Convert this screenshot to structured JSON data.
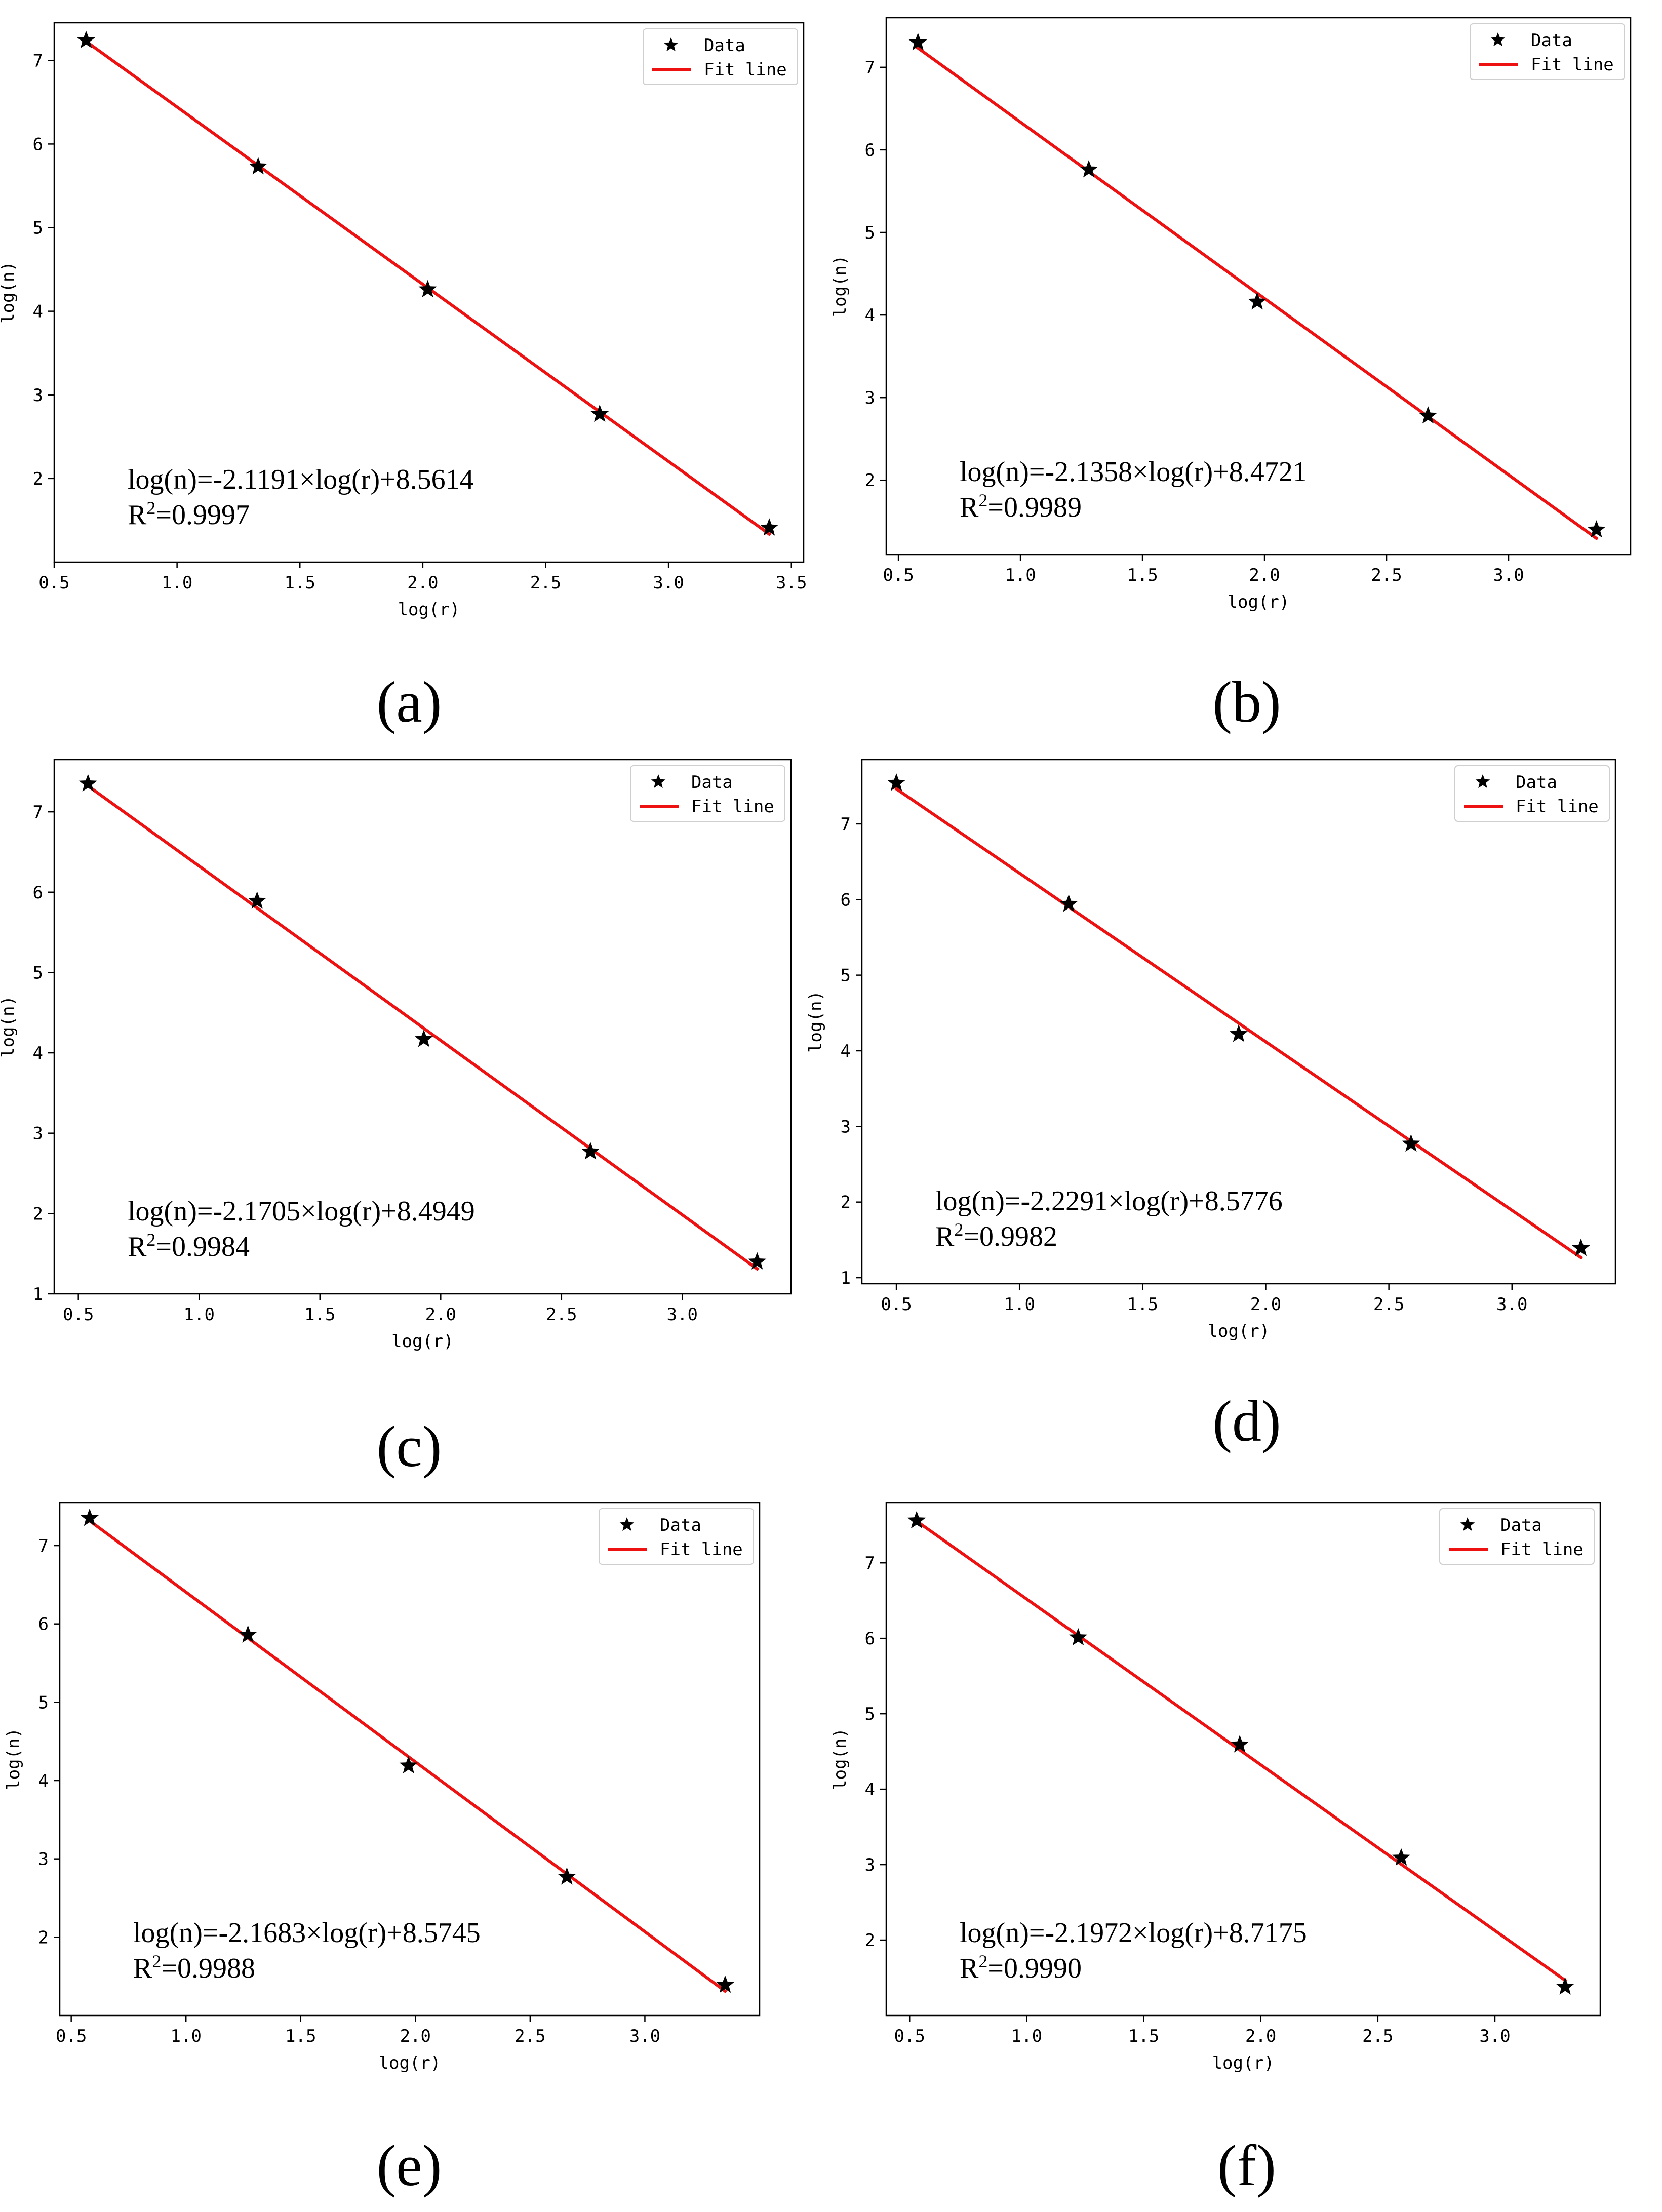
{
  "chart_data": [
    {
      "type": "scatter",
      "panel_label": "(a)",
      "xlabel": "log(r)",
      "ylabel": "log(n)",
      "xlim": [
        0.5,
        3.55
      ],
      "ylim": [
        1.0,
        7.45
      ],
      "xticks": [
        "0.5",
        "1.0",
        "1.5",
        "2.0",
        "2.5",
        "3.0",
        "3.5"
      ],
      "yticks": [
        "2",
        "3",
        "4",
        "5",
        "6",
        "7"
      ],
      "points": {
        "x": [
          0.63,
          1.33,
          2.02,
          2.72,
          3.41
        ],
        "y": [
          7.24,
          5.73,
          4.26,
          2.77,
          1.41
        ]
      },
      "fit": {
        "slope": -2.1191,
        "intercept": 8.5614,
        "x_range": [
          0.63,
          3.41
        ]
      },
      "equation": "log(n)=-2.1191×log(r)+8.5614",
      "r2_label": "R",
      "r2_sup": "2",
      "r2_value": "=0.9997",
      "legend": {
        "data_label": "Data",
        "fit_label": "Fit line",
        "location": "top-right"
      },
      "colors": {
        "line": "#ee1111",
        "marker": "#000000"
      }
    },
    {
      "type": "scatter",
      "panel_label": "(b)",
      "xlabel": "log(r)",
      "ylabel": "log(n)",
      "xlim": [
        0.45,
        3.5
      ],
      "ylim": [
        1.1,
        7.6
      ],
      "xticks": [
        "0.5",
        "1.0",
        "1.5",
        "2.0",
        "2.5",
        "3.0"
      ],
      "yticks": [
        "2",
        "3",
        "4",
        "5",
        "6",
        "7"
      ],
      "points": {
        "x": [
          0.58,
          1.28,
          1.97,
          2.67,
          3.36
        ],
        "y": [
          7.3,
          5.76,
          4.16,
          2.78,
          1.4
        ]
      },
      "fit": {
        "slope": -2.1358,
        "intercept": 8.4721,
        "x_range": [
          0.58,
          3.36
        ]
      },
      "equation": "log(n)=-2.1358×log(r)+8.4721",
      "r2_label": "R",
      "r2_sup": "2",
      "r2_value": "=0.9989",
      "legend": {
        "data_label": "Data",
        "fit_label": "Fit line",
        "location": "top-right"
      },
      "colors": {
        "line": "#ee1111",
        "marker": "#000000"
      }
    },
    {
      "type": "scatter",
      "panel_label": "(c)",
      "xlabel": "log(r)",
      "ylabel": "log(n)",
      "xlim": [
        0.4,
        3.45
      ],
      "ylim": [
        1.0,
        7.65
      ],
      "xticks": [
        "0.5",
        "1.0",
        "1.5",
        "2.0",
        "2.5",
        "3.0"
      ],
      "yticks": [
        "1",
        "2",
        "3",
        "4",
        "5",
        "6",
        "7"
      ],
      "points": {
        "x": [
          0.54,
          1.24,
          1.93,
          2.62,
          3.31
        ],
        "y": [
          7.35,
          5.89,
          4.17,
          2.77,
          1.4
        ]
      },
      "fit": {
        "slope": -2.1705,
        "intercept": 8.4949,
        "x_range": [
          0.54,
          3.31
        ]
      },
      "equation": "log(n)=-2.1705×log(r)+8.4949",
      "r2_label": "R",
      "r2_sup": "2",
      "r2_value": "=0.9984",
      "legend": {
        "data_label": "Data",
        "fit_label": "Fit line",
        "location": "top-right"
      },
      "colors": {
        "line": "#ee1111",
        "marker": "#000000"
      }
    },
    {
      "type": "scatter",
      "panel_label": "(d)",
      "xlabel": "log(r)",
      "ylabel": "log(n)",
      "xlim": [
        0.36,
        3.42
      ],
      "ylim": [
        0.92,
        7.85
      ],
      "xticks": [
        "0.5",
        "1.0",
        "1.5",
        "2.0",
        "2.5",
        "3.0"
      ],
      "yticks": [
        "1",
        "2",
        "3",
        "4",
        "5",
        "6",
        "7"
      ],
      "points": {
        "x": [
          0.5,
          1.2,
          1.89,
          2.59,
          3.28
        ],
        "y": [
          7.54,
          5.94,
          4.22,
          2.77,
          1.39
        ]
      },
      "fit": {
        "slope": -2.2291,
        "intercept": 8.5776,
        "x_range": [
          0.5,
          3.28
        ]
      },
      "equation": "log(n)=-2.2291×log(r)+8.5776",
      "r2_label": "R",
      "r2_sup": "2",
      "r2_value": "=0.9982",
      "legend": {
        "data_label": "Data",
        "fit_label": "Fit line",
        "location": "top-right"
      },
      "colors": {
        "line": "#ee1111",
        "marker": "#000000"
      }
    },
    {
      "type": "scatter",
      "panel_label": "(e)",
      "xlabel": "log(r)",
      "ylabel": "log(n)",
      "xlim": [
        0.45,
        3.5
      ],
      "ylim": [
        1.0,
        7.55
      ],
      "xticks": [
        "0.5",
        "1.0",
        "1.5",
        "2.0",
        "2.5",
        "3.0"
      ],
      "yticks": [
        "2",
        "3",
        "4",
        "5",
        "6",
        "7"
      ],
      "points": {
        "x": [
          0.58,
          1.27,
          1.97,
          2.66,
          3.35
        ],
        "y": [
          7.35,
          5.86,
          4.19,
          2.77,
          1.39
        ]
      },
      "fit": {
        "slope": -2.1683,
        "intercept": 8.5745,
        "x_range": [
          0.58,
          3.35
        ]
      },
      "equation": "log(n)=-2.1683×log(r)+8.5745",
      "r2_label": "R",
      "r2_sup": "2",
      "r2_value": "=0.9988",
      "legend": {
        "data_label": "Data",
        "fit_label": "Fit line",
        "location": "top-right"
      },
      "colors": {
        "line": "#ee1111",
        "marker": "#000000"
      }
    },
    {
      "type": "scatter",
      "panel_label": "(f)",
      "xlabel": "log(r)",
      "ylabel": "log(n)",
      "xlim": [
        0.4,
        3.45
      ],
      "ylim": [
        1.0,
        7.8
      ],
      "xticks": [
        "0.5",
        "1.0",
        "1.5",
        "2.0",
        "2.5",
        "3.0"
      ],
      "yticks": [
        "2",
        "3",
        "4",
        "5",
        "6",
        "7"
      ],
      "points": {
        "x": [
          0.53,
          1.22,
          1.91,
          2.6,
          3.3
        ],
        "y": [
          7.56,
          6.01,
          4.59,
          3.09,
          1.38
        ]
      },
      "fit": {
        "slope": -2.1972,
        "intercept": 8.7175,
        "x_range": [
          0.53,
          3.3
        ]
      },
      "equation": "log(n)=-2.1972×log(r)+8.7175",
      "r2_label": "R",
      "r2_sup": "2",
      "r2_value": "=0.9990",
      "legend": {
        "data_label": "Data",
        "fit_label": "Fit line",
        "location": "top-right"
      },
      "colors": {
        "line": "#ee1111",
        "marker": "#000000"
      }
    }
  ]
}
